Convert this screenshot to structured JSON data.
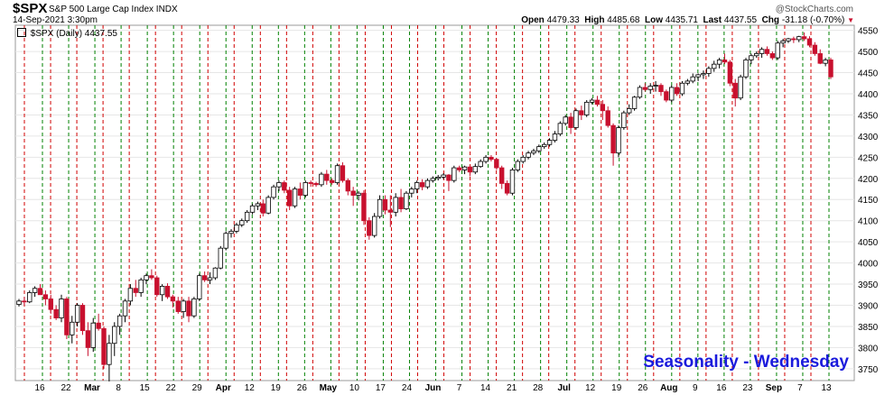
{
  "header": {
    "symbol": "$SPX",
    "name": "S&P 500 Large Cap Index",
    "exchange": "INDX",
    "datetime": "14-Sep-2021 3:30pm",
    "brand": "@StockCharts.com",
    "open_label": "Open",
    "open": "4479.33",
    "high_label": "High",
    "high": "4485.68",
    "low_label": "Low",
    "low": "4435.71",
    "last_label": "Last",
    "last": "4437.55",
    "chg_label": "Chg",
    "chg": "-31.18 (-0.70%)"
  },
  "legend": {
    "text": "$SPX (Daily) 4437.55"
  },
  "colors": {
    "up": "#000000",
    "down": "#c8102e",
    "red_line": "#d00000",
    "green_line": "#008000",
    "watermark": "#1a1adc",
    "grid": "#e6e6e6"
  },
  "chart_data": {
    "type": "candlestick",
    "annotation": "Seasonality - Wednesday",
    "y_ticks": [
      3750,
      3800,
      3850,
      3900,
      3950,
      4000,
      4050,
      4100,
      4150,
      4200,
      4250,
      4300,
      4350,
      4400,
      4450,
      4500,
      4550
    ],
    "ylim": [
      3722,
      4562
    ],
    "x_labels": [
      {
        "text": "16",
        "bold": false
      },
      {
        "text": "22",
        "bold": false
      },
      {
        "text": "Mar",
        "bold": true
      },
      {
        "text": "8",
        "bold": false
      },
      {
        "text": "15",
        "bold": false
      },
      {
        "text": "22",
        "bold": false
      },
      {
        "text": "29",
        "bold": false
      },
      {
        "text": "Apr",
        "bold": true
      },
      {
        "text": "12",
        "bold": false
      },
      {
        "text": "19",
        "bold": false
      },
      {
        "text": "26",
        "bold": false
      },
      {
        "text": "May",
        "bold": true
      },
      {
        "text": "10",
        "bold": false
      },
      {
        "text": "17",
        "bold": false
      },
      {
        "text": "24",
        "bold": false
      },
      {
        "text": "Jun",
        "bold": true
      },
      {
        "text": "7",
        "bold": false
      },
      {
        "text": "14",
        "bold": false
      },
      {
        "text": "21",
        "bold": false
      },
      {
        "text": "28",
        "bold": false
      },
      {
        "text": "Jul",
        "bold": true
      },
      {
        "text": "12",
        "bold": false
      },
      {
        "text": "19",
        "bold": false
      },
      {
        "text": "26",
        "bold": false
      },
      {
        "text": "Aug",
        "bold": true
      },
      {
        "text": "9",
        "bold": false
      },
      {
        "text": "16",
        "bold": false
      },
      {
        "text": "23",
        "bold": false
      },
      {
        "text": "Sep",
        "bold": true
      },
      {
        "text": "7",
        "bold": false
      },
      {
        "text": "13",
        "bold": false
      }
    ],
    "candles": [
      [
        3902,
        3915,
        3897,
        3910
      ],
      [
        3910,
        3920,
        3900,
        3908
      ],
      [
        3908,
        3935,
        3905,
        3930
      ],
      [
        3930,
        3945,
        3920,
        3940
      ],
      [
        3940,
        3950,
        3930,
        3925
      ],
      [
        3925,
        3935,
        3900,
        3915
      ],
      [
        3915,
        3925,
        3880,
        3890
      ],
      [
        3890,
        3900,
        3865,
        3870
      ],
      [
        3870,
        3925,
        3860,
        3915
      ],
      [
        3915,
        3920,
        3820,
        3830
      ],
      [
        3830,
        3875,
        3810,
        3860
      ],
      [
        3860,
        3905,
        3850,
        3900
      ],
      [
        3900,
        3905,
        3830,
        3840
      ],
      [
        3840,
        3860,
        3780,
        3800
      ],
      [
        3800,
        3870,
        3790,
        3858
      ],
      [
        3858,
        3880,
        3840,
        3845
      ],
      [
        3845,
        3850,
        3750,
        3760
      ],
      [
        3760,
        3830,
        3720,
        3810
      ],
      [
        3810,
        3860,
        3780,
        3850
      ],
      [
        3850,
        3880,
        3830,
        3875
      ],
      [
        3875,
        3915,
        3860,
        3910
      ],
      [
        3910,
        3950,
        3900,
        3940
      ],
      [
        3940,
        3960,
        3920,
        3930
      ],
      [
        3930,
        3965,
        3920,
        3960
      ],
      [
        3960,
        3975,
        3950,
        3970
      ],
      [
        3970,
        3985,
        3960,
        3965
      ],
      [
        3965,
        3970,
        3920,
        3925
      ],
      [
        3925,
        3950,
        3910,
        3945
      ],
      [
        3945,
        3952,
        3915,
        3920
      ],
      [
        3920,
        3925,
        3895,
        3910
      ],
      [
        3910,
        3920,
        3880,
        3885
      ],
      [
        3885,
        3915,
        3870,
        3910
      ],
      [
        3910,
        3920,
        3860,
        3875
      ],
      [
        3875,
        3920,
        3870,
        3915
      ],
      [
        3915,
        3975,
        3910,
        3970
      ],
      [
        3970,
        3980,
        3955,
        3960
      ],
      [
        3960,
        3978,
        3950,
        3965
      ],
      [
        3965,
        3990,
        3960,
        3988
      ],
      [
        3988,
        4040,
        3985,
        4035
      ],
      [
        4035,
        4075,
        4030,
        4070
      ],
      [
        4070,
        4080,
        4060,
        4075
      ],
      [
        4075,
        4095,
        4070,
        4090
      ],
      [
        4090,
        4105,
        4085,
        4100
      ],
      [
        4100,
        4125,
        4095,
        4120
      ],
      [
        4120,
        4140,
        4115,
        4135
      ],
      [
        4135,
        4145,
        4125,
        4140
      ],
      [
        4140,
        4150,
        4110,
        4118
      ],
      [
        4118,
        4160,
        4115,
        4155
      ],
      [
        4155,
        4185,
        4150,
        4180
      ],
      [
        4180,
        4195,
        4170,
        4190
      ],
      [
        4190,
        4195,
        4165,
        4172
      ],
      [
        4172,
        4180,
        4125,
        4135
      ],
      [
        4135,
        4180,
        4130,
        4175
      ],
      [
        4175,
        4190,
        4150,
        4160
      ],
      [
        4160,
        4195,
        4155,
        4190
      ],
      [
        4190,
        4195,
        4180,
        4188
      ],
      [
        4188,
        4192,
        4180,
        4185
      ],
      [
        4185,
        4215,
        4180,
        4210
      ],
      [
        4210,
        4220,
        4185,
        4195
      ],
      [
        4195,
        4200,
        4185,
        4190
      ],
      [
        4190,
        4235,
        4185,
        4230
      ],
      [
        4230,
        4238,
        4190,
        4195
      ],
      [
        4195,
        4200,
        4160,
        4170
      ],
      [
        4170,
        4180,
        4135,
        4160
      ],
      [
        4160,
        4170,
        4148,
        4165
      ],
      [
        4165,
        4172,
        4090,
        4100
      ],
      [
        4100,
        4108,
        4055,
        4065
      ],
      [
        4065,
        4118,
        4060,
        4110
      ],
      [
        4110,
        4160,
        4105,
        4150
      ],
      [
        4150,
        4160,
        4115,
        4125
      ],
      [
        4125,
        4160,
        4085,
        4120
      ],
      [
        4120,
        4165,
        4110,
        4155
      ],
      [
        4155,
        4175,
        4120,
        4128
      ],
      [
        4128,
        4170,
        4125,
        4165
      ],
      [
        4165,
        4180,
        4155,
        4175
      ],
      [
        4175,
        4195,
        4165,
        4190
      ],
      [
        4190,
        4198,
        4172,
        4180
      ],
      [
        4180,
        4200,
        4175,
        4195
      ],
      [
        4195,
        4205,
        4190,
        4200
      ],
      [
        4200,
        4208,
        4195,
        4203
      ],
      [
        4203,
        4212,
        4198,
        4208
      ],
      [
        4208,
        4210,
        4170,
        4195
      ],
      [
        4195,
        4230,
        4190,
        4225
      ],
      [
        4225,
        4230,
        4215,
        4220
      ],
      [
        4220,
        4230,
        4210,
        4227
      ],
      [
        4227,
        4228,
        4205,
        4215
      ],
      [
        4215,
        4235,
        4210,
        4228
      ],
      [
        4228,
        4245,
        4225,
        4240
      ],
      [
        4240,
        4255,
        4235,
        4250
      ],
      [
        4250,
        4255,
        4240,
        4245
      ],
      [
        4245,
        4248,
        4220,
        4225
      ],
      [
        4225,
        4230,
        4175,
        4188
      ],
      [
        4188,
        4195,
        4160,
        4165
      ],
      [
        4165,
        4225,
        4160,
        4220
      ],
      [
        4220,
        4245,
        4215,
        4240
      ],
      [
        4240,
        4255,
        4235,
        4250
      ],
      [
        4250,
        4265,
        4245,
        4260
      ],
      [
        4260,
        4270,
        4255,
        4265
      ],
      [
        4265,
        4280,
        4260,
        4275
      ],
      [
        4275,
        4285,
        4270,
        4280
      ],
      [
        4280,
        4295,
        4275,
        4290
      ],
      [
        4290,
        4312,
        4285,
        4305
      ],
      [
        4305,
        4335,
        4300,
        4330
      ],
      [
        4330,
        4350,
        4325,
        4345
      ],
      [
        4345,
        4355,
        4305,
        4320
      ],
      [
        4320,
        4365,
        4315,
        4360
      ],
      [
        4360,
        4372,
        4338,
        4350
      ],
      [
        4350,
        4385,
        4345,
        4380
      ],
      [
        4380,
        4390,
        4375,
        4385
      ],
      [
        4385,
        4395,
        4370,
        4375
      ],
      [
        4375,
        4385,
        4338,
        4360
      ],
      [
        4360,
        4370,
        4320,
        4325
      ],
      [
        4325,
        4330,
        4230,
        4260
      ],
      [
        4260,
        4325,
        4250,
        4320
      ],
      [
        4320,
        4360,
        4315,
        4355
      ],
      [
        4355,
        4375,
        4350,
        4365
      ],
      [
        4365,
        4395,
        4360,
        4392
      ],
      [
        4392,
        4420,
        4388,
        4415
      ],
      [
        4415,
        4425,
        4405,
        4410
      ],
      [
        4410,
        4425,
        4400,
        4418
      ],
      [
        4418,
        4430,
        4405,
        4420
      ],
      [
        4420,
        4425,
        4395,
        4405
      ],
      [
        4405,
        4410,
        4380,
        4385
      ],
      [
        4385,
        4420,
        4380,
        4415
      ],
      [
        4415,
        4425,
        4395,
        4400
      ],
      [
        4400,
        4430,
        4395,
        4425
      ],
      [
        4425,
        4435,
        4420,
        4430
      ],
      [
        4430,
        4448,
        4425,
        4440
      ],
      [
        4440,
        4448,
        4430,
        4445
      ],
      [
        4445,
        4455,
        4435,
        4448
      ],
      [
        4448,
        4465,
        4440,
        4460
      ],
      [
        4460,
        4478,
        4452,
        4470
      ],
      [
        4470,
        4485,
        4460,
        4480
      ],
      [
        4480,
        4495,
        4470,
        4475
      ],
      [
        4475,
        4480,
        4418,
        4425
      ],
      [
        4425,
        4435,
        4370,
        4390
      ],
      [
        4390,
        4445,
        4385,
        4440
      ],
      [
        4440,
        4485,
        4435,
        4480
      ],
      [
        4480,
        4495,
        4470,
        4490
      ],
      [
        4490,
        4500,
        4485,
        4495
      ],
      [
        4495,
        4510,
        4485,
        4505
      ],
      [
        4505,
        4512,
        4490,
        4495
      ],
      [
        4495,
        4500,
        4480,
        4485
      ],
      [
        4485,
        4525,
        4480,
        4520
      ],
      [
        4520,
        4530,
        4510,
        4525
      ],
      [
        4525,
        4532,
        4520,
        4530
      ],
      [
        4530,
        4535,
        4520,
        4528
      ],
      [
        4528,
        4537,
        4522,
        4535
      ],
      [
        4535,
        4545,
        4525,
        4530
      ],
      [
        4530,
        4536,
        4510,
        4515
      ],
      [
        4515,
        4522,
        4490,
        4495
      ],
      [
        4495,
        4505,
        4470,
        4472
      ],
      [
        4472,
        4485,
        4465,
        4480
      ],
      [
        4480,
        4485,
        4435,
        4440
      ]
    ]
  }
}
